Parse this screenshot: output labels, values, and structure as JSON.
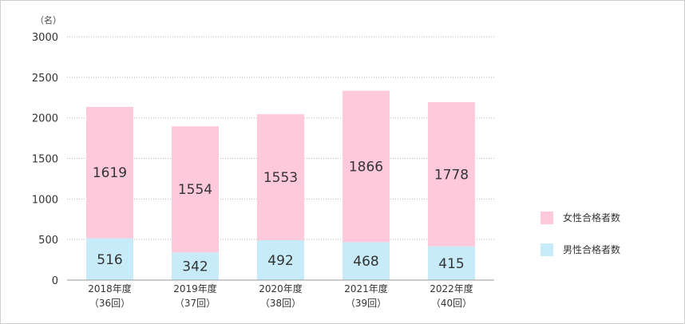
{
  "chart_data": {
    "type": "bar",
    "stacked": true,
    "unit_label": "（名）",
    "ylim": [
      0,
      3000
    ],
    "yticks": [
      0,
      500,
      1000,
      1500,
      2000,
      2500,
      3000
    ],
    "grid": true,
    "legend_position": "right",
    "categories": [
      [
        "2018年度",
        "（36回）"
      ],
      [
        "2019年度",
        "（37回）"
      ],
      [
        "2020年度",
        "（38回）"
      ],
      [
        "2021年度",
        "（39回）"
      ],
      [
        "2022年度",
        "（40回）"
      ]
    ],
    "series": [
      {
        "name": "男性合格者数",
        "color": "#c8ebf9",
        "values": [
          516,
          342,
          492,
          468,
          415
        ]
      },
      {
        "name": "女性合格者数",
        "color": "#ffc9dc",
        "values": [
          1619,
          1554,
          1553,
          1866,
          1778
        ]
      }
    ],
    "legend": [
      {
        "label": "女性合格者数",
        "color": "#ffc9dc"
      },
      {
        "label": "男性合格者数",
        "color": "#c8ebf9"
      }
    ]
  }
}
